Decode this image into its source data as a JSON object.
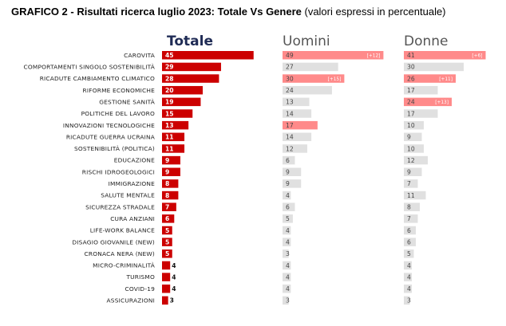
{
  "title": {
    "bold": "GRAFICO 2 - Risultati ricerca luglio 2023: Totale Vs Genere",
    "normal": " (valori espressi in percentuale)"
  },
  "colors": {
    "totale": "#cc0000",
    "highlight": "#ff8a8a",
    "grey": "#e0e0e0",
    "head_totale": "#1f2b55",
    "head_gender": "#555555"
  },
  "chart_data": {
    "type": "bar",
    "panels": [
      "Totale",
      "Uomini",
      "Donne"
    ],
    "categories": [
      "CAROVITA",
      "COMPORTAMENTI SINGOLO SOSTENIBILITÀ",
      "RICADUTE CAMBIAMENTO CLIMATICO",
      "RIFORME ECONOMICHE",
      "GESTIONE SANITÀ",
      "POLITICHE DEL LAVORO",
      "INNOVAZIONI TECNOLOGICHE",
      "RICADUTE GUERRA UCRAINA",
      "SOSTENIBILITÀ (POLITICA)",
      "EDUCAZIONE",
      "RISCHI IDROGEOLOGICI",
      "IMMIGRAZIONE",
      "SALUTE MENTALE",
      "SICUREZZA STRADALE",
      "CURA ANZIANI",
      "LIFE-WORK BALANCE",
      "DISAGIO GIOVANILE (NEW)",
      "CRONACA NERA (NEW)",
      "MICRO-CRIMINALITÀ",
      "TURISMO",
      "COVID-19",
      "ASSICURAZIONI"
    ],
    "series": [
      {
        "name": "Totale",
        "values": [
          45,
          29,
          28,
          20,
          19,
          15,
          13,
          11,
          11,
          9,
          9,
          8,
          8,
          7,
          6,
          5,
          5,
          5,
          4,
          4,
          4,
          3
        ]
      },
      {
        "name": "Uomini",
        "values": [
          49,
          27,
          30,
          24,
          13,
          14,
          17,
          14,
          12,
          6,
          9,
          9,
          4,
          6,
          5,
          4,
          4,
          3,
          4,
          4,
          4,
          3
        ],
        "highlighted": [
          true,
          false,
          true,
          false,
          false,
          false,
          true,
          false,
          false,
          false,
          false,
          false,
          false,
          false,
          false,
          false,
          false,
          false,
          false,
          false,
          false,
          false
        ],
        "deltas": [
          "[+12]",
          "",
          "[+15]",
          "",
          "",
          "",
          "",
          "",
          "",
          "",
          "",
          "",
          "",
          "",
          "",
          "",
          "",
          "",
          "",
          "",
          "",
          ""
        ]
      },
      {
        "name": "Donne",
        "values": [
          41,
          30,
          26,
          17,
          24,
          17,
          10,
          9,
          10,
          12,
          9,
          7,
          11,
          8,
          7,
          6,
          6,
          5,
          4,
          4,
          4,
          3
        ],
        "highlighted": [
          true,
          false,
          true,
          false,
          true,
          false,
          false,
          false,
          false,
          false,
          false,
          false,
          false,
          false,
          false,
          false,
          false,
          false,
          false,
          false,
          false,
          false
        ],
        "deltas": [
          "[+6]",
          "",
          "[+11]",
          "",
          "[+13]",
          "",
          "",
          "",
          "",
          "",
          "",
          "",
          "",
          "",
          "",
          "",
          "",
          "",
          "",
          "",
          "",
          ""
        ]
      }
    ]
  }
}
